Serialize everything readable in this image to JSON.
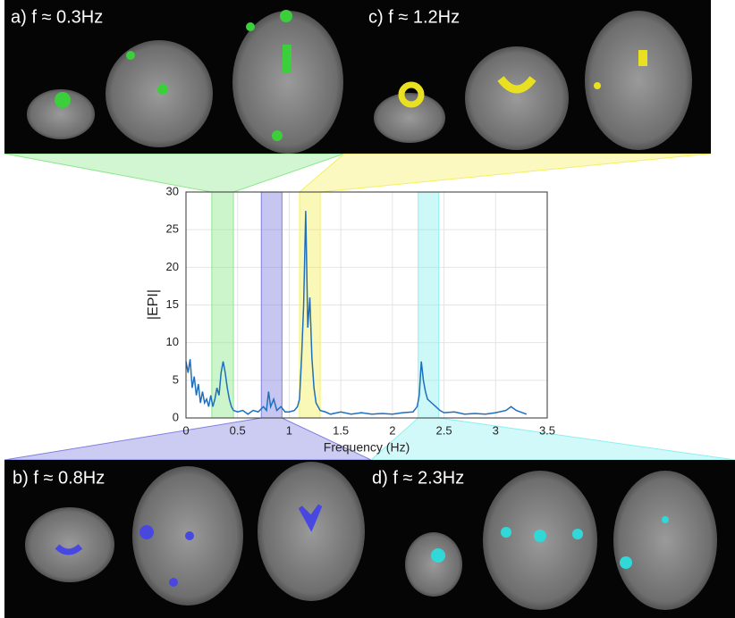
{
  "chart_data": {
    "type": "line",
    "x_label": "Frequency (Hz)",
    "y_label": "|EPI|",
    "x": [
      0,
      0.02,
      0.04,
      0.06,
      0.08,
      0.1,
      0.12,
      0.14,
      0.16,
      0.18,
      0.2,
      0.22,
      0.24,
      0.26,
      0.28,
      0.3,
      0.32,
      0.34,
      0.36,
      0.38,
      0.4,
      0.42,
      0.44,
      0.46,
      0.5,
      0.55,
      0.6,
      0.65,
      0.7,
      0.75,
      0.78,
      0.8,
      0.82,
      0.85,
      0.88,
      0.92,
      0.96,
      1.0,
      1.05,
      1.08,
      1.1,
      1.12,
      1.14,
      1.16,
      1.18,
      1.2,
      1.22,
      1.24,
      1.26,
      1.28,
      1.3,
      1.35,
      1.4,
      1.5,
      1.6,
      1.7,
      1.8,
      1.9,
      2.0,
      2.1,
      2.2,
      2.24,
      2.26,
      2.28,
      2.3,
      2.32,
      2.34,
      2.38,
      2.42,
      2.46,
      2.5,
      2.6,
      2.7,
      2.8,
      2.9,
      3.0,
      3.1,
      3.15,
      3.2,
      3.3
    ],
    "series": [
      {
        "color": "#1f6fbf",
        "values": [
          7.5,
          6,
          7.8,
          4,
          5.5,
          3,
          4.5,
          2,
          3.5,
          2,
          2.5,
          1.5,
          3,
          1.5,
          2.5,
          4,
          3,
          6,
          7.5,
          6,
          4,
          2.5,
          1.5,
          1,
          0.8,
          1,
          0.5,
          1,
          0.8,
          1.5,
          1,
          3.5,
          1.5,
          2.5,
          1,
          1.5,
          0.8,
          0.8,
          1,
          1.5,
          2.5,
          8,
          15,
          27.5,
          12,
          16,
          8,
          4,
          2,
          1.5,
          1,
          0.8,
          0.5,
          0.8,
          0.5,
          0.7,
          0.5,
          0.6,
          0.5,
          0.7,
          0.8,
          1.5,
          3,
          7.5,
          5,
          3.5,
          2.5,
          2,
          1.5,
          1,
          0.7,
          0.8,
          0.5,
          0.6,
          0.5,
          0.7,
          1,
          1.5,
          1,
          0.5
        ]
      }
    ],
    "xlim": [
      0,
      3.5
    ],
    "xticks": [
      0,
      0.5,
      1,
      1.5,
      2,
      2.5,
      3,
      3.5
    ],
    "ylim": [
      0,
      30
    ],
    "yticks": [
      0,
      5,
      10,
      15,
      20,
      25,
      30
    ],
    "grid": true,
    "bands": [
      {
        "xrange": [
          0.25,
          0.46
        ],
        "color": "#8ee88e"
      },
      {
        "xrange": [
          0.73,
          0.93
        ],
        "color": "#8080e0"
      },
      {
        "xrange": [
          1.1,
          1.3
        ],
        "color": "#f5f060"
      },
      {
        "xrange": [
          2.25,
          2.45
        ],
        "color": "#8ef0f0"
      }
    ],
    "panels": [
      {
        "label": "a) f ≈ 0.3Hz"
      },
      {
        "label": "b) f ≈ 0.8Hz"
      },
      {
        "label": "c) f ≈ 1.2Hz"
      },
      {
        "label": "d) f ≈ 2.3Hz"
      }
    ]
  }
}
